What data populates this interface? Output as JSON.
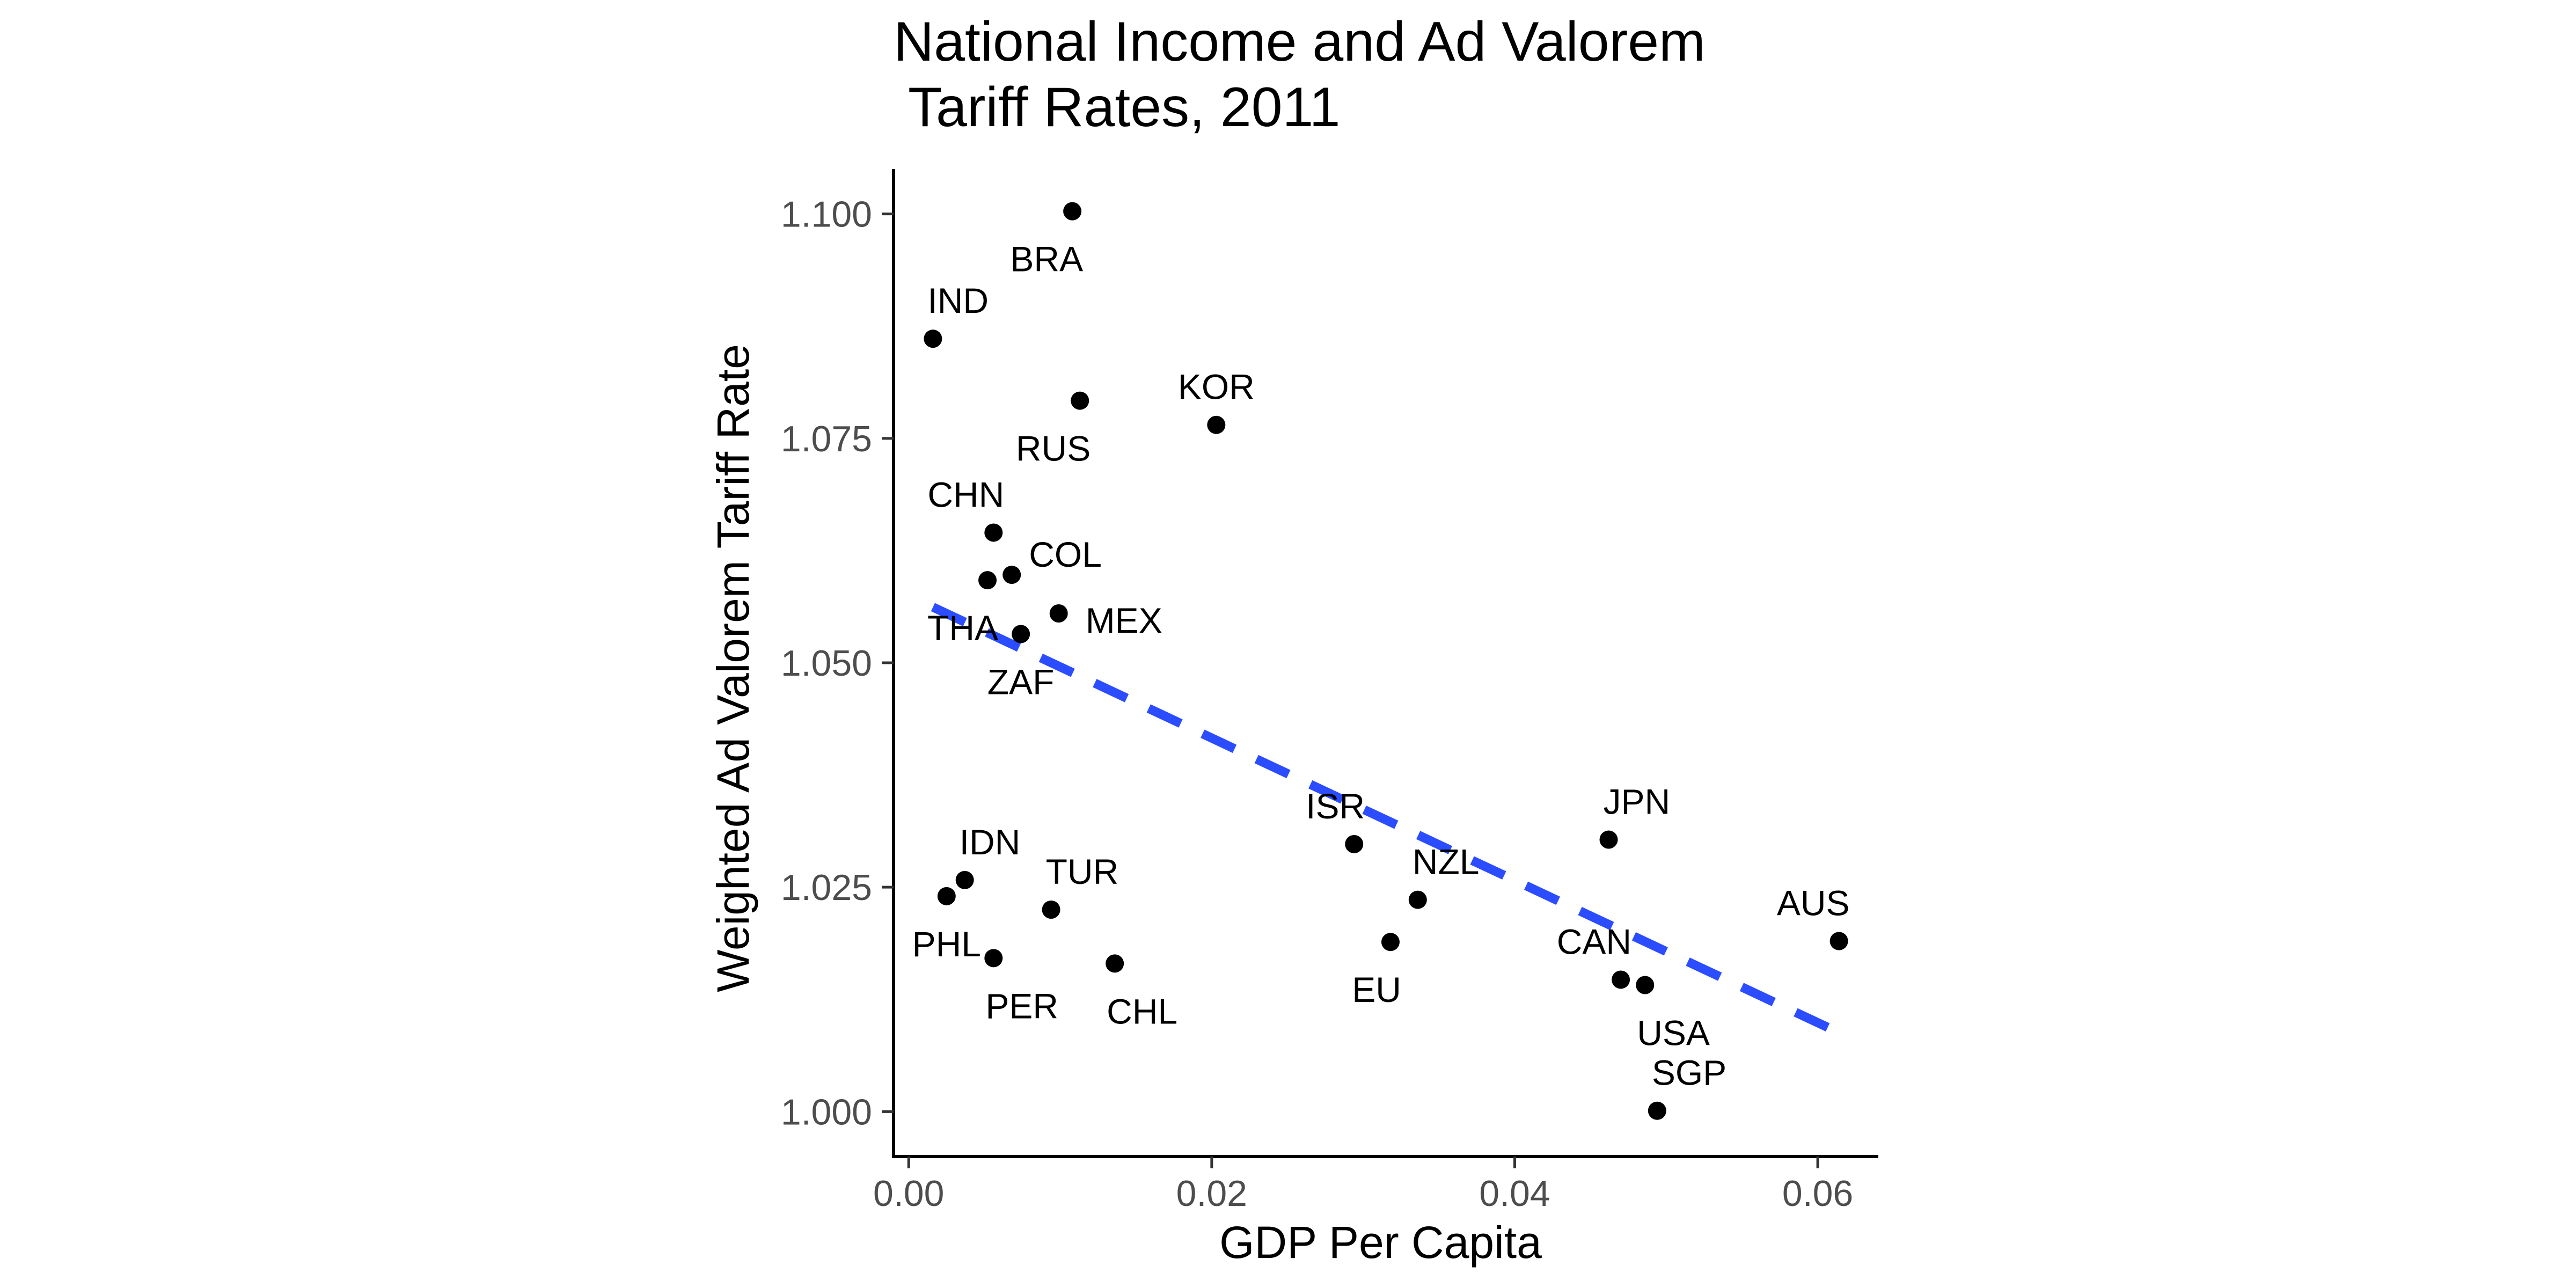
{
  "chart_data": {
    "type": "scatter",
    "title": "National Income and Ad Valorem\n Tariff Rates, 2011",
    "xlabel": "GDP Per Capita",
    "ylabel": "Weighted Ad Valorem Tariff Rate",
    "xlim": [
      -0.001,
      0.064
    ],
    "ylim": [
      0.995,
      1.105
    ],
    "x_ticks": [
      0.0,
      0.02,
      0.04,
      0.06
    ],
    "x_tick_labels": [
      "0.00",
      "0.02",
      "0.04",
      "0.06"
    ],
    "y_ticks": [
      1.0,
      1.025,
      1.05,
      1.075,
      1.1
    ],
    "y_tick_labels": [
      "1.000",
      "1.025",
      "1.050",
      "1.075",
      "1.100"
    ],
    "grid": false,
    "point_color": "#000000",
    "points": [
      {
        "label": "BRA",
        "x": 0.0108,
        "y": 1.1003,
        "label_anchor": "below-left"
      },
      {
        "label": "IND",
        "x": 0.0016,
        "y": 1.0861,
        "label_anchor": "above-right"
      },
      {
        "label": "RUS",
        "x": 0.0113,
        "y": 1.0792,
        "label_anchor": "below-left"
      },
      {
        "label": "KOR",
        "x": 0.0203,
        "y": 1.0765,
        "label_anchor": "above"
      },
      {
        "label": "CHN",
        "x": 0.0056,
        "y": 1.0645,
        "label_anchor": "above-left"
      },
      {
        "label": "COL",
        "x": 0.0068,
        "y": 1.0598,
        "label_anchor": "right-above"
      },
      {
        "label": "THA",
        "x": 0.0052,
        "y": 1.0592,
        "label_anchor": "below-left"
      },
      {
        "label": "MEX",
        "x": 0.0099,
        "y": 1.0555,
        "label_anchor": "right-below"
      },
      {
        "label": "ZAF",
        "x": 0.0074,
        "y": 1.0532,
        "label_anchor": "below"
      },
      {
        "label": "IDN",
        "x": 0.0037,
        "y": 1.0258,
        "label_anchor": "above-right"
      },
      {
        "label": "PHL",
        "x": 0.0025,
        "y": 1.024,
        "label_anchor": "below"
      },
      {
        "label": "TUR",
        "x": 0.0094,
        "y": 1.0225,
        "label_anchor": "above-right"
      },
      {
        "label": "PER",
        "x": 0.0056,
        "y": 1.0171,
        "label_anchor": "below-right"
      },
      {
        "label": "CHL",
        "x": 0.0136,
        "y": 1.0165,
        "label_anchor": "below-right"
      },
      {
        "label": "ISR",
        "x": 0.0294,
        "y": 1.0298,
        "label_anchor": "above-left"
      },
      {
        "label": "NZL",
        "x": 0.0336,
        "y": 1.0236,
        "label_anchor": "above-right"
      },
      {
        "label": "EU",
        "x": 0.0318,
        "y": 1.0189,
        "label_anchor": "below-left"
      },
      {
        "label": "JPN",
        "x": 0.0462,
        "y": 1.0303,
        "label_anchor": "above-right"
      },
      {
        "label": "CAN",
        "x": 0.047,
        "y": 1.0147,
        "label_anchor": "above-left"
      },
      {
        "label": "USA",
        "x": 0.0486,
        "y": 1.0141,
        "label_anchor": "below-right"
      },
      {
        "label": "AUS",
        "x": 0.0614,
        "y": 1.019,
        "label_anchor": "above-left"
      },
      {
        "label": "SGP",
        "x": 0.0494,
        "y": 1.0001,
        "label_anchor": "above-right"
      }
    ],
    "trend_line": {
      "style": "dashed",
      "color": "#2b4dff",
      "x": [
        0.0016,
        0.0614
      ],
      "y": [
        1.0562,
        1.0088
      ]
    }
  }
}
